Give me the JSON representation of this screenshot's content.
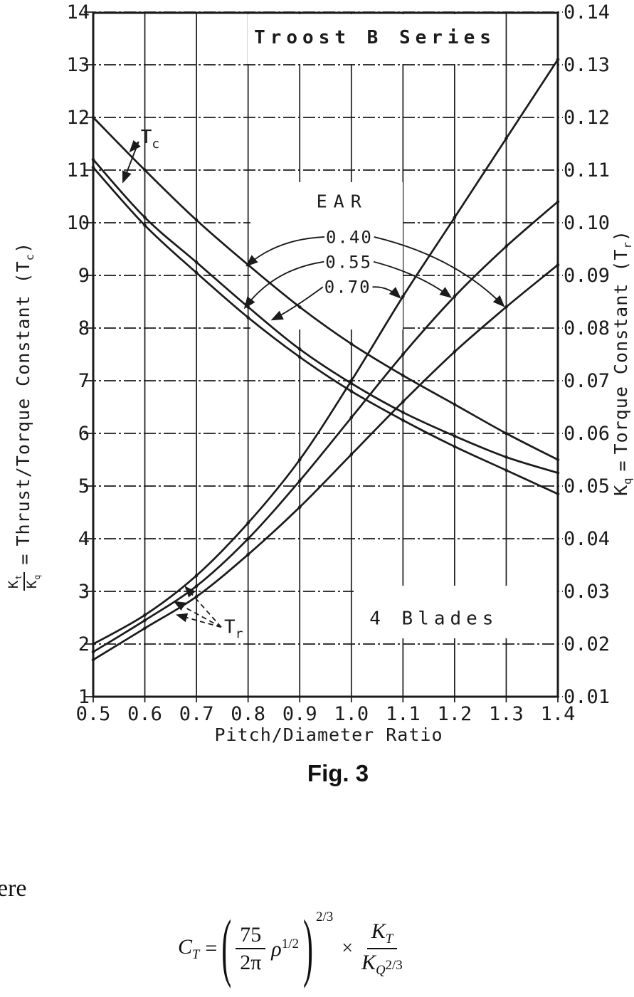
{
  "chart_data": {
    "type": "line",
    "title": "Troost B Series",
    "xlabel": "Pitch/Diameter Ratio",
    "ylabel_left": "Kt/Kq = Thrust/Torque Constant (Tc)",
    "ylabel_right": "Kq = Torque Constant (Tr)",
    "xlim": [
      0.5,
      1.4
    ],
    "ylim_left": [
      1,
      14
    ],
    "ylim_right": [
      0.01,
      0.14
    ],
    "grid": "on",
    "legend_position": "none",
    "x_ticks": [
      "0.5",
      "0.6",
      "0.7",
      "0.8",
      "0.9",
      "1.0",
      "1.1",
      "1.2",
      "1.3",
      "1.4"
    ],
    "y_ticks_left": [
      "14",
      "13",
      "12",
      "11",
      "10",
      "9",
      "8",
      "7",
      "6",
      "5",
      "4",
      "3",
      "2",
      "1"
    ],
    "y_ticks_right": [
      "0.14",
      "0.13",
      "0.12",
      "0.11",
      "0.10",
      "0.09",
      "0.08",
      "0.07",
      "0.06",
      "0.05",
      "0.04",
      "0.03",
      "0.02",
      "0.01"
    ],
    "x": [
      0.5,
      0.6,
      0.7,
      0.8,
      0.9,
      1.0,
      1.1,
      1.2,
      1.3,
      1.4
    ],
    "series": [
      {
        "name": "Tc (Thrust/Torque Constant) EAR 0.40",
        "axis": "left",
        "values": [
          12.0,
          11.0,
          10.05,
          9.2,
          8.4,
          7.7,
          7.1,
          6.55,
          6.0,
          5.5
        ]
      },
      {
        "name": "Tc (Thrust/Torque Constant) EAR 0.55",
        "axis": "left",
        "values": [
          11.2,
          10.1,
          9.25,
          8.4,
          7.6,
          6.95,
          6.4,
          5.95,
          5.55,
          5.25
        ]
      },
      {
        "name": "Tc (Thrust/Torque Constant) EAR 0.70",
        "axis": "left",
        "values": [
          11.05,
          9.95,
          9.05,
          8.2,
          7.45,
          6.8,
          6.25,
          5.75,
          5.3,
          4.85
        ]
      },
      {
        "name": "Tr (Torque Constant) EAR 0.70",
        "axis": "right",
        "values": [
          0.02,
          0.0255,
          0.033,
          0.043,
          0.055,
          0.07,
          0.086,
          0.101,
          0.116,
          0.131
        ]
      },
      {
        "name": "Tr (Torque Constant) EAR 0.55",
        "axis": "right",
        "values": [
          0.0185,
          0.0245,
          0.031,
          0.04,
          0.051,
          0.063,
          0.075,
          0.086,
          0.0955,
          0.104
        ]
      },
      {
        "name": "Tr (Torque Constant) EAR 0.40",
        "axis": "right",
        "values": [
          0.017,
          0.023,
          0.029,
          0.037,
          0.046,
          0.056,
          0.066,
          0.0755,
          0.084,
          0.092
        ]
      }
    ],
    "annotations": {
      "blades": {
        "text": "4 Blades",
        "x": 1.16,
        "v": 2.49
      },
      "tc_label": {
        "text": "T",
        "sub": "c",
        "x": 0.592,
        "v": 11.62,
        "targets": [
          [
            0.572,
            11.36
          ],
          [
            0.558,
            10.78
          ]
        ]
      },
      "tr_label": {
        "text": "T",
        "sub": "r",
        "x": 0.748,
        "v": 2.32,
        "dashed": true,
        "targets": [
          [
            0.679,
            3.08
          ],
          [
            0.658,
            2.8
          ],
          [
            0.663,
            2.55
          ]
        ]
      },
      "ear": {
        "heading": "EAR",
        "hx": 0.982,
        "hv": 10.4,
        "items": [
          {
            "label": "0.40",
            "x": 0.996,
            "v": 9.72,
            "left": {
              "from": [
                0.948,
                9.73
              ],
              "ctrl": [
                0.857,
                9.69
              ],
              "to": [
                0.798,
                9.19
              ]
            },
            "right": {
              "from": [
                1.044,
                9.73
              ],
              "ctrl": [
                1.201,
                9.36
              ],
              "to": [
                1.295,
                8.42
              ]
            }
          },
          {
            "label": "0.55",
            "x": 0.995,
            "v": 9.25,
            "left": {
              "from": [
                0.947,
                9.26
              ],
              "ctrl": [
                0.85,
                9.12
              ],
              "to": [
                0.794,
                8.39
              ]
            },
            "right": {
              "from": [
                1.043,
                9.26
              ],
              "ctrl": [
                1.132,
                9.03
              ],
              "to": [
                1.192,
                8.59
              ]
            }
          },
          {
            "label": "0.70",
            "x": 0.993,
            "v": 8.78,
            "left": {
              "from": [
                0.945,
                8.78
              ],
              "ctrl": [
                0.884,
                8.34
              ],
              "to": [
                0.847,
                8.16
              ]
            },
            "right": {
              "from": [
                1.041,
                8.78
              ],
              "ctrl": [
                1.07,
                8.8
              ],
              "to": [
                1.094,
                8.58
              ]
            }
          }
        ]
      }
    },
    "ink_color": "#1b1b1b"
  },
  "axis_text": {
    "left": {
      "frac_num_base": "K",
      "frac_num_sub": "t",
      "frac_den_base": "K",
      "frac_den_sub": "q",
      "equals": "=",
      "main": "Thrust/Torque Constant (T",
      "main_sub": "c",
      "close": ")"
    },
    "right": {
      "base": "K",
      "base_sub": "q",
      "equals": "=",
      "main": "Torque Constant (T",
      "main_sub": "r",
      "close": ")"
    }
  },
  "caption": {
    "fig": "Fig. 3"
  },
  "body_text": {
    "where_partial": "ere"
  },
  "equation": {
    "lhs": "C",
    "lhs_sub": "T",
    "equals": "=",
    "open_paren": "(",
    "frac_num": "75",
    "frac_den": "2π",
    "rho": "ρ",
    "rho_exp": "1/2",
    "close_paren": ")",
    "outer_exp": "2/3",
    "times": "×",
    "num_base": "K",
    "num_sub": "T",
    "den_base": "K",
    "den_sub": "Q",
    "den_exp": "2/3"
  }
}
